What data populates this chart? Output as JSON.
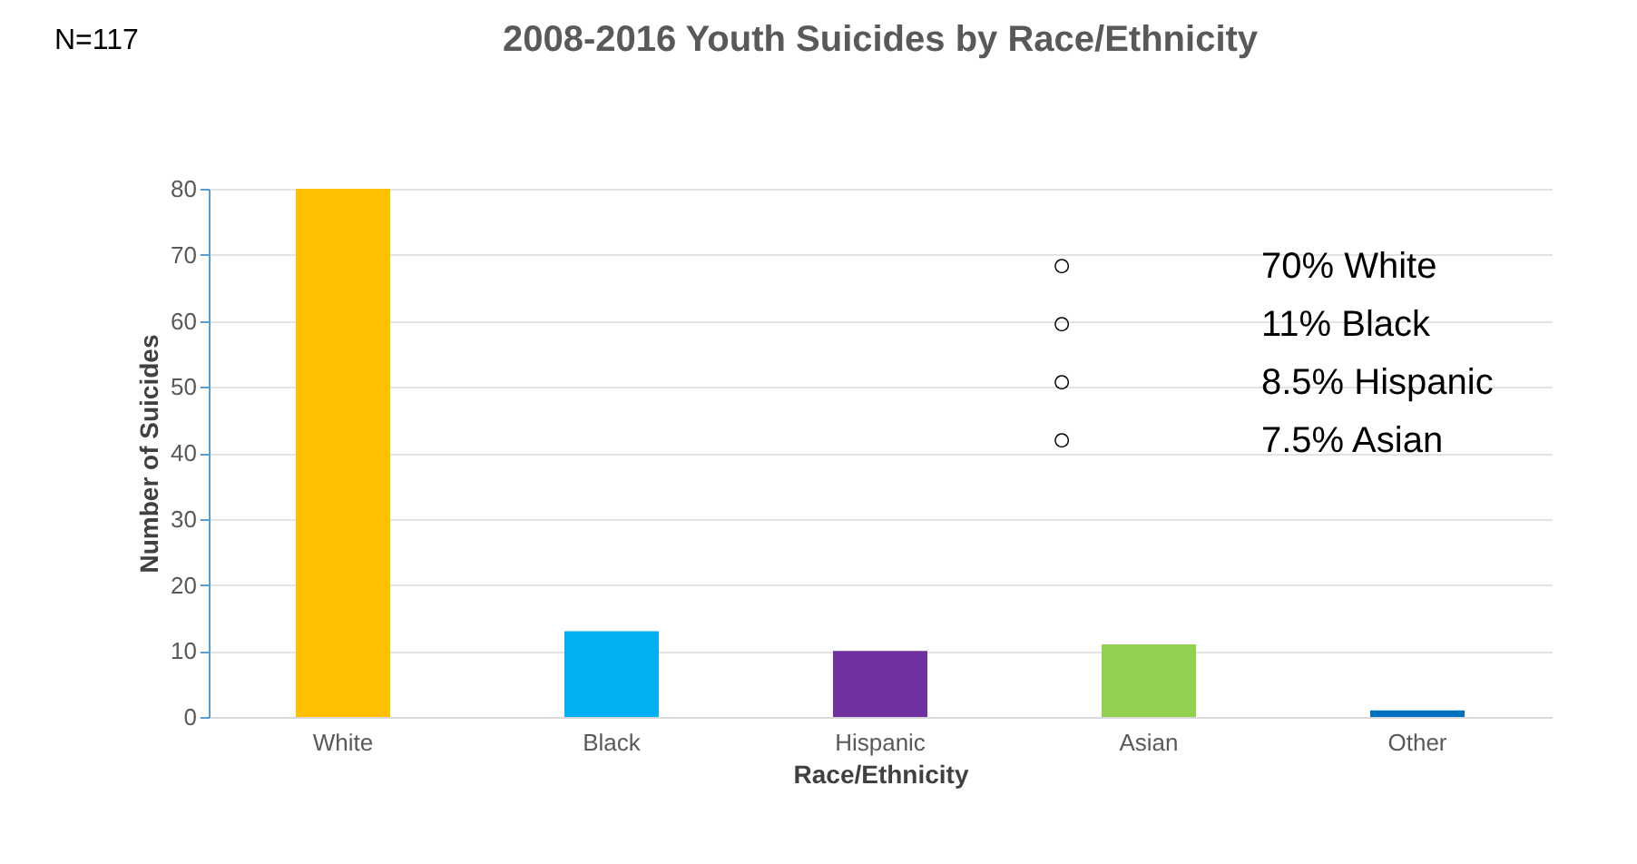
{
  "chart_data": {
    "type": "bar",
    "title": "2008-2016 Youth Suicides by Race/Ethnicity",
    "xlabel": "Race/Ethnicity",
    "ylabel": "Number of Suicides",
    "categories": [
      "White",
      "Black",
      "Hispanic",
      "Asian",
      "Other"
    ],
    "values": [
      80,
      13,
      10,
      11,
      1
    ],
    "colors": [
      "#ffc000",
      "#00b0f0",
      "#7030a0",
      "#92d050",
      "#0070c0"
    ],
    "ylim": [
      0,
      80
    ],
    "yticks": [
      0,
      10,
      20,
      30,
      40,
      50,
      60,
      70,
      80
    ],
    "grid": "y",
    "legend": false,
    "annotations": [
      "N=117",
      "○ 70% White",
      "○ 11% Black",
      "○ 8.5% Hispanic",
      "○ 7.5% Asian"
    ]
  }
}
